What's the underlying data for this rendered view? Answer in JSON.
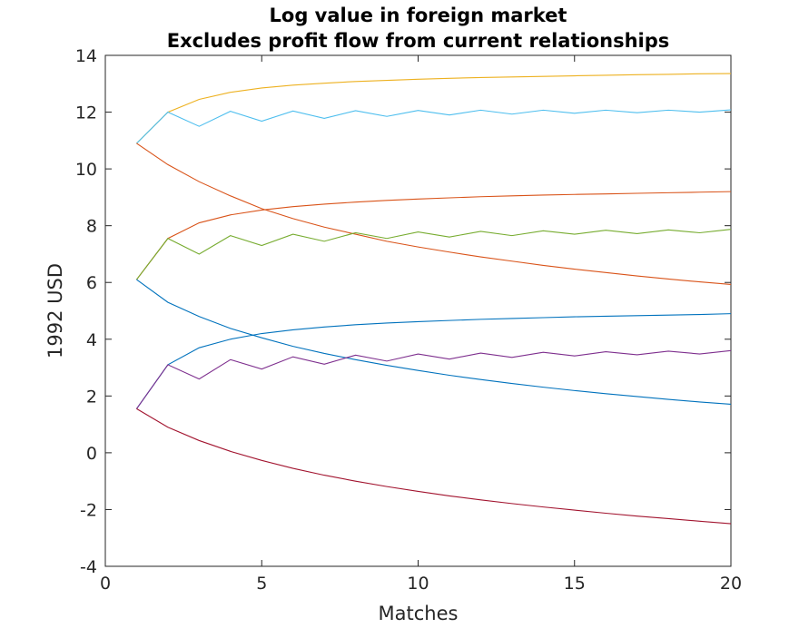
{
  "chart_data": {
    "type": "line",
    "title": [
      "Log value in foreign market",
      "Excludes profit flow from current relationships"
    ],
    "xlabel": "Matches",
    "ylabel": "1992 USD",
    "xlim": [
      0,
      20
    ],
    "ylim": [
      -4,
      14
    ],
    "xticks": [
      0,
      5,
      10,
      15,
      20
    ],
    "yticks": [
      -4,
      -2,
      0,
      2,
      4,
      6,
      8,
      10,
      12,
      14
    ],
    "grid": false,
    "x": [
      1,
      2,
      3,
      4,
      5,
      6,
      7,
      8,
      9,
      10,
      11,
      12,
      13,
      14,
      15,
      16,
      17,
      18,
      19,
      20
    ],
    "series": [
      {
        "color": "#EDB120",
        "values": [
          10.9,
          12.0,
          12.45,
          12.7,
          12.85,
          12.95,
          13.02,
          13.08,
          13.12,
          13.16,
          13.19,
          13.22,
          13.24,
          13.26,
          13.28,
          13.3,
          13.32,
          13.33,
          13.35,
          13.36
        ]
      },
      {
        "color": "#4DBEEE",
        "values": [
          10.9,
          12.0,
          11.5,
          12.03,
          11.68,
          12.04,
          11.78,
          12.05,
          11.85,
          12.06,
          11.9,
          12.07,
          11.93,
          12.07,
          11.96,
          12.07,
          11.98,
          12.07,
          12.0,
          12.08
        ]
      },
      {
        "color": "#D95319",
        "values": [
          10.9,
          10.15,
          9.55,
          9.05,
          8.6,
          8.25,
          7.95,
          7.7,
          7.45,
          7.25,
          7.07,
          6.9,
          6.75,
          6.6,
          6.47,
          6.35,
          6.23,
          6.12,
          6.02,
          5.93
        ]
      },
      {
        "color": "#D95319",
        "values": [
          6.1,
          7.55,
          8.1,
          8.38,
          8.55,
          8.67,
          8.76,
          8.83,
          8.89,
          8.94,
          8.98,
          9.02,
          9.05,
          9.08,
          9.1,
          9.12,
          9.14,
          9.16,
          9.18,
          9.2
        ]
      },
      {
        "color": "#77AC30",
        "values": [
          6.1,
          7.55,
          7.0,
          7.65,
          7.3,
          7.7,
          7.45,
          7.75,
          7.55,
          7.78,
          7.6,
          7.8,
          7.65,
          7.82,
          7.7,
          7.84,
          7.72,
          7.85,
          7.75,
          7.87
        ]
      },
      {
        "color": "#0072BD",
        "values": [
          6.1,
          5.3,
          4.8,
          4.38,
          4.05,
          3.75,
          3.5,
          3.28,
          3.08,
          2.9,
          2.73,
          2.58,
          2.44,
          2.31,
          2.19,
          2.08,
          1.98,
          1.88,
          1.79,
          1.71
        ]
      },
      {
        "color": "#0072BD",
        "values": [
          1.55,
          3.1,
          3.7,
          4.0,
          4.2,
          4.33,
          4.43,
          4.51,
          4.57,
          4.62,
          4.66,
          4.7,
          4.73,
          4.76,
          4.79,
          4.81,
          4.83,
          4.85,
          4.87,
          4.9
        ]
      },
      {
        "color": "#7E2F8E",
        "values": [
          1.55,
          3.1,
          2.6,
          3.28,
          2.95,
          3.38,
          3.12,
          3.44,
          3.23,
          3.48,
          3.3,
          3.51,
          3.36,
          3.54,
          3.41,
          3.56,
          3.45,
          3.58,
          3.48,
          3.6
        ]
      },
      {
        "color": "#A2142F",
        "values": [
          1.55,
          0.9,
          0.43,
          0.05,
          -0.27,
          -0.55,
          -0.79,
          -1.0,
          -1.19,
          -1.36,
          -1.52,
          -1.66,
          -1.79,
          -1.91,
          -2.02,
          -2.13,
          -2.23,
          -2.32,
          -2.41,
          -2.5
        ]
      }
    ]
  }
}
